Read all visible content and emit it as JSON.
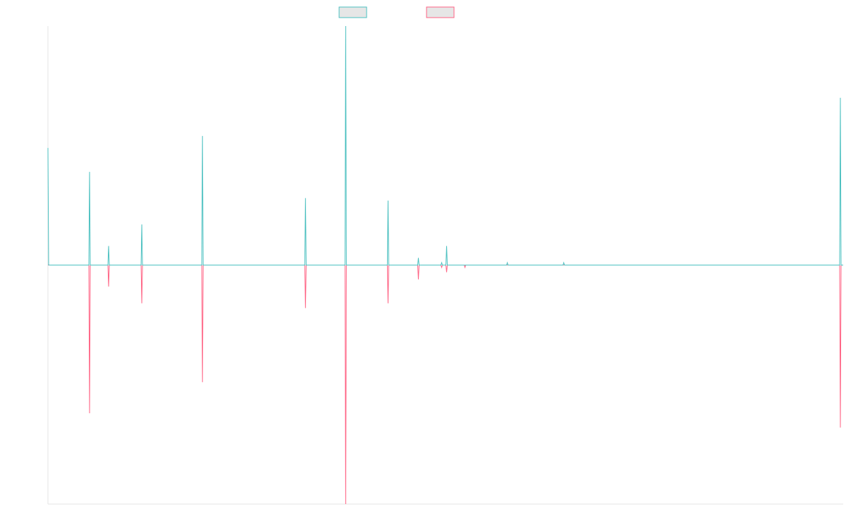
{
  "chart_data": {
    "type": "line",
    "title": "",
    "xlabel": "",
    "ylabel": "",
    "legend_position": "top-center",
    "grid": false,
    "ylim": [
      -1,
      1
    ],
    "x": [
      0,
      1,
      2,
      3,
      4,
      5,
      6,
      7,
      8,
      9,
      10,
      11,
      12,
      13,
      14,
      15,
      16,
      17,
      18,
      19,
      20,
      21,
      22,
      23,
      24,
      25,
      26,
      27,
      28,
      29,
      30,
      31,
      32,
      33,
      34,
      35,
      36,
      37,
      38,
      39,
      40,
      41,
      42,
      43,
      44,
      45,
      46,
      47,
      48,
      49,
      50,
      51,
      52,
      53,
      54,
      55,
      56,
      57,
      58,
      59,
      60,
      61,
      62,
      63,
      64,
      65,
      66,
      67,
      68,
      69,
      70,
      71,
      72,
      73,
      74,
      75,
      76,
      77,
      78,
      79,
      80,
      81,
      82,
      83,
      84,
      85,
      86,
      87,
      88,
      89,
      90,
      91,
      92,
      93,
      94,
      95,
      96,
      97,
      98,
      99,
      100,
      101,
      102,
      103,
      104,
      105,
      106,
      107,
      108,
      109,
      110,
      111,
      112,
      113,
      114,
      115,
      116,
      117,
      118,
      119,
      120,
      121,
      122,
      123,
      124,
      125,
      126,
      127,
      128,
      129,
      130,
      131,
      132,
      133,
      134,
      135,
      136,
      137,
      138,
      139,
      140,
      141,
      142,
      143,
      144,
      145,
      146,
      147,
      148,
      149,
      150,
      151,
      152,
      153,
      154,
      155,
      156,
      157,
      158,
      159,
      160,
      161,
      162,
      163,
      164,
      165,
      166,
      167,
      168,
      169,
      170,
      171,
      172,
      173,
      174,
      175,
      176,
      177,
      178,
      179,
      180,
      181,
      182,
      183,
      184,
      185,
      186,
      187,
      188,
      189,
      190,
      191,
      192,
      193,
      194,
      195,
      196,
      197,
      198,
      199,
      200,
      201,
      202,
      203,
      204,
      205,
      206,
      207,
      208,
      209,
      210,
      211,
      212,
      213,
      214,
      215,
      216,
      217,
      218,
      219,
      220,
      221,
      222,
      223,
      224,
      225,
      226,
      227,
      228,
      229,
      230,
      231,
      232,
      233,
      234,
      235,
      236,
      237,
      238,
      239,
      240,
      241,
      242,
      243,
      244,
      245,
      246,
      247,
      248,
      249,
      250,
      251,
      252,
      253,
      254,
      255,
      256,
      257,
      258,
      259,
      260,
      261,
      262,
      263,
      264,
      265,
      266,
      267,
      268,
      269,
      270,
      271,
      272,
      273,
      274,
      275,
      276,
      277,
      278,
      279,
      280,
      281,
      282,
      283,
      284,
      285,
      286,
      287,
      288,
      289,
      290,
      291,
      292,
      293,
      294,
      295,
      296,
      297,
      298,
      299,
      300,
      301,
      302,
      303,
      304,
      305,
      306,
      307,
      308,
      309,
      310,
      311,
      312,
      313,
      314,
      315,
      316,
      317,
      318,
      319,
      320,
      321,
      322,
      323,
      324,
      325,
      326,
      327,
      328,
      329,
      330,
      331,
      332,
      333,
      334,
      335,
      336,
      337,
      338,
      339,
      340,
      341,
      342,
      343,
      344,
      345,
      346,
      347,
      348,
      349,
      350,
      351,
      352,
      353,
      354,
      355,
      356,
      357,
      358,
      359,
      360,
      361,
      362,
      363,
      364,
      365,
      366,
      367,
      368,
      369,
      370,
      371,
      372,
      373,
      374,
      375,
      376,
      377,
      378,
      379,
      380,
      381,
      382,
      383,
      384,
      385,
      386,
      387,
      388,
      389,
      390,
      391,
      392,
      393,
      394,
      395,
      396,
      397,
      398,
      399,
      400,
      401,
      402,
      403,
      404,
      405,
      406,
      407,
      408,
      409,
      410,
      411,
      412,
      413,
      414,
      415,
      416,
      417,
      418,
      419,
      420,
      421,
      422,
      423,
      424,
      425,
      426,
      427,
      428,
      429,
      430,
      431,
      432,
      433,
      434,
      435,
      436,
      437,
      438,
      439,
      440,
      441,
      442,
      443,
      444,
      445,
      446,
      447,
      448,
      449,
      450,
      451,
      452,
      453,
      454,
      455,
      456,
      457,
      458,
      459,
      460,
      461,
      462,
      463,
      464,
      465,
      466,
      467,
      468,
      469,
      470,
      471,
      472,
      473,
      474,
      475,
      476,
      477,
      478,
      479,
      480,
      481,
      482,
      483,
      484,
      485,
      486,
      487,
      488,
      489,
      490,
      491,
      492,
      493,
      494,
      495,
      496,
      497,
      498,
      499,
      500,
      501,
      502,
      503,
      504,
      505,
      506,
      507,
      508,
      509,
      510,
      511,
      512,
      513,
      514,
      515,
      516,
      517,
      518,
      519,
      520,
      521,
      522,
      523,
      524,
      525,
      526,
      527,
      528,
      529,
      530,
      531,
      532,
      533,
      534,
      535,
      536,
      537,
      538,
      539,
      540,
      541,
      542,
      543,
      544,
      545,
      546,
      547,
      548,
      549,
      550,
      551,
      552,
      553,
      554,
      555,
      556,
      557,
      558,
      559,
      560,
      561,
      562,
      563,
      564,
      565,
      566,
      567,
      568,
      569,
      570,
      571,
      572,
      573,
      574,
      575,
      576,
      577,
      578,
      579,
      580,
      581,
      582,
      583,
      584,
      585,
      586,
      587,
      588,
      589,
      590,
      591,
      592,
      593,
      594,
      595,
      596,
      597,
      598,
      599,
      600,
      601,
      602,
      603,
      604,
      605,
      606,
      607,
      608,
      609,
      610,
      611,
      612,
      613,
      614,
      615,
      616,
      617,
      618,
      619,
      620,
      621,
      622,
      623,
      624,
      625,
      626,
      627,
      628,
      629,
      630,
      631,
      632,
      633,
      634,
      635,
      636,
      637,
      638,
      639,
      640,
      641,
      642,
      643,
      644,
      645,
      646,
      647,
      648,
      649,
      650,
      651,
      652,
      653,
      654,
      655,
      656,
      657,
      658,
      659,
      660,
      661,
      662,
      663,
      664,
      665,
      666,
      667,
      668,
      669,
      670,
      671,
      672,
      673,
      674,
      675,
      676,
      677,
      678,
      679,
      680,
      681,
      682,
      683,
      684,
      685,
      686,
      687,
      688,
      689,
      690,
      691,
      692,
      693,
      694,
      695,
      696,
      697,
      698,
      699,
      700,
      701,
      702,
      703,
      704,
      705,
      706,
      707,
      708,
      709,
      710,
      711,
      712,
      713,
      714,
      715,
      716,
      717,
      718,
      719,
      720,
      721,
      722,
      723,
      724,
      725,
      726,
      727,
      728,
      729,
      730,
      731,
      732,
      733,
      734,
      735,
      736,
      737,
      738,
      739,
      740,
      741,
      742,
      743,
      744,
      745,
      746,
      747,
      748,
      749,
      750,
      751,
      752,
      753,
      754,
      755,
      756,
      757,
      758,
      759,
      760,
      761,
      762,
      763,
      764,
      765,
      766,
      767,
      768,
      769,
      770,
      771,
      772,
      773,
      774,
      775,
      776,
      777,
      778,
      779,
      780,
      781,
      782,
      783,
      784,
      785,
      786,
      787,
      788,
      789,
      790,
      791,
      792,
      793,
      794,
      795,
      796,
      797,
      798,
      799,
      800,
      801,
      802,
      803,
      804,
      805,
      806,
      807,
      808,
      809,
      810,
      811,
      812,
      813,
      814,
      815,
      816,
      817,
      818,
      819,
      820,
      821,
      822,
      823,
      824,
      825,
      826,
      827,
      828,
      829,
      830,
      831,
      832,
      833,
      834,
      835,
      836,
      837,
      838,
      839,
      840,
      841,
      842,
      843,
      844,
      845,
      846,
      847,
      848,
      849,
      850,
      851,
      852,
      853,
      854,
      855,
      856,
      857,
      858,
      859,
      860,
      861,
      862,
      863,
      864,
      865,
      866,
      867,
      868,
      869,
      870,
      871,
      872,
      873,
      874,
      875,
      876,
      877,
      878,
      879,
      880,
      881,
      882,
      883,
      884,
      885,
      886,
      887,
      888,
      889,
      890,
      891,
      892,
      893,
      894,
      895,
      896,
      897,
      898,
      899,
      900,
      901,
      902,
      903,
      904,
      905,
      906,
      907,
      908,
      909,
      910,
      911,
      912,
      913,
      914,
      915,
      916,
      917,
      918,
      919,
      920,
      921,
      922,
      923,
      924,
      925,
      926,
      927,
      928,
      929,
      930,
      931,
      932,
      933,
      934,
      935,
      936,
      937,
      938,
      939,
      940,
      941,
      942,
      943,
      944,
      945,
      946,
      947,
      948,
      949,
      950,
      951,
      952,
      953,
      954,
      955,
      956,
      957,
      958,
      959,
      960,
      961,
      962,
      963,
      964,
      965,
      966,
      967,
      968,
      969,
      970,
      971,
      972,
      973,
      974,
      975,
      976,
      977,
      978,
      979,
      980,
      981,
      982,
      983,
      984,
      985,
      986,
      987,
      988,
      989,
      990,
      991,
      992,
      993,
      994,
      995,
      996,
      997,
      998,
      999,
      1000,
      1001,
      1002,
      1003,
      1004,
      1005,
      1006,
      1007,
      1008,
      1009,
      1010,
      1011,
      1012,
      1013,
      1014,
      1015,
      1016,
      1017,
      1018,
      1019,
      1020,
      1021,
      1022,
      1023,
      1024,
      1025,
      1026,
      1027,
      1028,
      1029,
      1030,
      1031,
      1032,
      1033,
      1034,
      1035,
      1036,
      1037,
      1038,
      1039,
      1040,
      1041,
      1042,
      1043,
      1044,
      1045,
      1046,
      1047,
      1048,
      1049,
      1050,
      1051,
      1052,
      1053,
      1054,
      1055,
      1056,
      1057,
      1058,
      1059,
      1060,
      1061,
      1062,
      1063,
      1064,
      1065,
      1066,
      1067,
      1068,
      1069,
      1070,
      1071,
      1072,
      1073,
      1074,
      1075,
      1076,
      1077,
      1078,
      1079,
      1080,
      1081,
      1082,
      1083,
      1084,
      1085,
      1086,
      1087,
      1088,
      1089,
      1090,
      1091,
      1092,
      1093,
      1094,
      1095,
      1096,
      1097,
      1098,
      1099,
      1100,
      1101,
      1102,
      1103,
      1104,
      1105,
      1106,
      1107,
      1108,
      1109,
      1110,
      1111,
      1112,
      1113,
      1114,
      1115,
      1116,
      1117,
      1118,
      1119,
      1120,
      1121,
      1122,
      1123,
      1124,
      1125,
      1126,
      1127
    ],
    "spikes": [
      {
        "x": 0,
        "pos": 0.49,
        "neg": 0.0
      },
      {
        "x": 59,
        "pos": 0.39,
        "neg": -0.62
      },
      {
        "x": 86,
        "pos": 0.08,
        "neg": -0.09
      },
      {
        "x": 133,
        "pos": 0.17,
        "neg": -0.16
      },
      {
        "x": 219,
        "pos": 0.54,
        "neg": -0.49
      },
      {
        "x": 365,
        "pos": 0.28,
        "neg": -0.18
      },
      {
        "x": 422,
        "pos": 1.0,
        "neg": -1.0
      },
      {
        "x": 449,
        "pos": 0.0,
        "neg": 0.0
      },
      {
        "x": 482,
        "pos": 0.27,
        "neg": -0.16
      },
      {
        "x": 525,
        "pos": 0.03,
        "neg": -0.06
      },
      {
        "x": 558,
        "pos": 0.01,
        "neg": -0.01
      },
      {
        "x": 565,
        "pos": 0.08,
        "neg": -0.03
      },
      {
        "x": 591,
        "pos": 0.0,
        "neg": -0.01
      },
      {
        "x": 628,
        "pos": 0.0,
        "neg": 0.0
      },
      {
        "x": 651,
        "pos": 0.01,
        "neg": 0.0
      },
      {
        "x": 692,
        "pos": 0.0,
        "neg": 0.0
      },
      {
        "x": 731,
        "pos": 0.01,
        "neg": 0.0
      },
      {
        "x": 738,
        "pos": 0.0,
        "neg": 0.0
      },
      {
        "x": 824,
        "pos": 0.0,
        "neg": 0.0
      },
      {
        "x": 1123,
        "pos": 0.7,
        "neg": -0.68
      }
    ],
    "series": [
      {
        "color": "#4bc0c0"
      },
      {
        "color": "#ff6384"
      }
    ],
    "legend_fill": "#e6e6e6",
    "axis_color": "#e6e6e6"
  }
}
